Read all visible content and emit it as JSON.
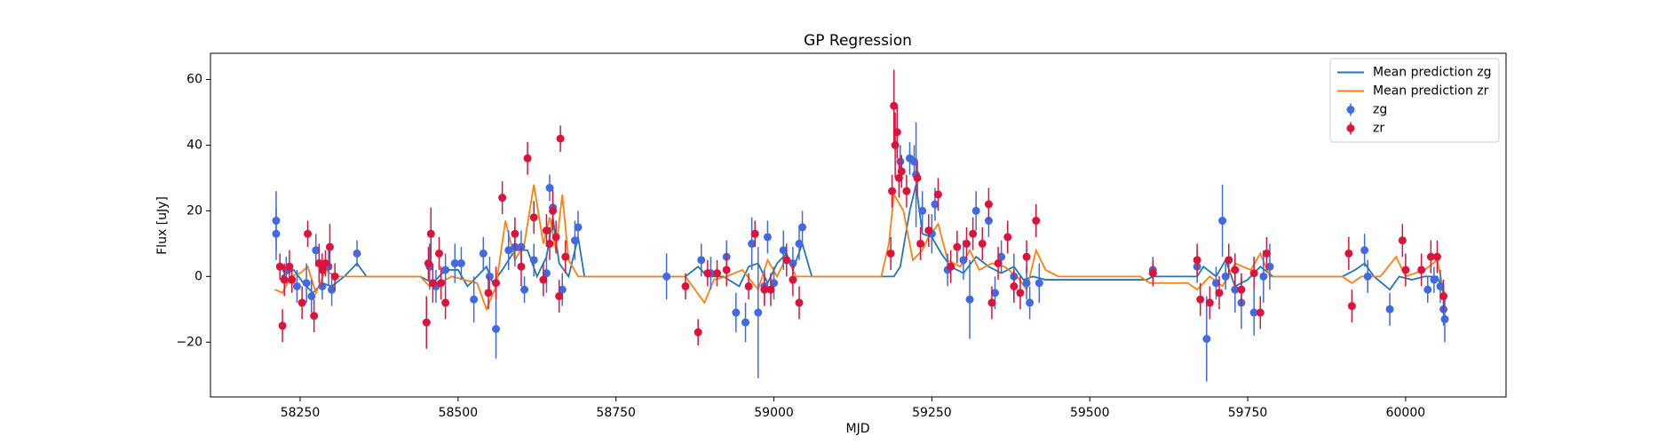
{
  "chart_data": {
    "type": "line",
    "title": "GP Regression",
    "x_label": "MJD",
    "y_label": "Flux [uJy]",
    "xlim": [
      58108,
      60159
    ],
    "ylim": [
      -36.7,
      68
    ],
    "xticks": [
      58250,
      58500,
      58750,
      59000,
      59250,
      59500,
      59750,
      60000
    ],
    "yticks": [
      {
        "value": -20,
        "label": "−20"
      },
      0,
      20,
      40,
      60
    ],
    "grid": false,
    "legend": "upper right",
    "series": [
      {
        "name": "Mean prediction zg",
        "type": "line",
        "color": "#1f77b4",
        "x": [
          58220,
          58240,
          58255,
          58270,
          58285,
          58300,
          58320,
          58340,
          58355,
          58440,
          58460,
          58480,
          58500,
          58515,
          58530,
          58545,
          58555,
          58570,
          58590,
          58610,
          58625,
          58640,
          58650,
          58660,
          58675,
          58690,
          58700,
          58720,
          58860,
          58880,
          58895,
          58920,
          58945,
          58960,
          58975,
          58990,
          59005,
          59020,
          59030,
          59045,
          59060,
          59190,
          59200,
          59215,
          59225,
          59235,
          59250,
          59265,
          59280,
          59300,
          59320,
          59340,
          59360,
          59380,
          59395,
          59410,
          59430,
          59590,
          59600,
          59620,
          59670,
          59680,
          59700,
          59715,
          59730,
          59750,
          59770,
          59790,
          59900,
          59920,
          59935,
          59950,
          59975,
          59990,
          60010,
          60030,
          60050,
          60060
        ],
        "values": [
          0,
          2,
          -2,
          -5,
          -2,
          -3,
          0,
          4,
          0,
          0,
          -2,
          2,
          2,
          -3,
          0,
          3,
          -2,
          2,
          8,
          8,
          0,
          6,
          18,
          4,
          0,
          12,
          0,
          0,
          0,
          3,
          0,
          0,
          -3,
          3,
          4,
          -2,
          4,
          7,
          2,
          10,
          0,
          0,
          3,
          20,
          28,
          13,
          12,
          7,
          3,
          1,
          6,
          3,
          1,
          3,
          -1,
          0,
          -1,
          -1,
          0,
          0,
          0,
          3,
          0,
          5,
          -3,
          -1,
          3,
          0,
          0,
          2,
          4,
          0,
          -4,
          0,
          -1,
          0,
          0,
          -5
        ]
      },
      {
        "name": "Mean prediction zr",
        "type": "line",
        "color": "#ff7f0e",
        "x": [
          58210,
          58222,
          58235,
          58250,
          58262,
          58275,
          58290,
          58305,
          58320,
          58440,
          58455,
          58470,
          58490,
          58510,
          58530,
          58545,
          58560,
          58575,
          58590,
          58605,
          58620,
          58635,
          58645,
          58655,
          58665,
          58675,
          58690,
          58860,
          58875,
          58890,
          58905,
          58925,
          58950,
          58975,
          58990,
          59005,
          59020,
          59035,
          59050,
          59170,
          59182,
          59190,
          59205,
          59220,
          59235,
          59245,
          59260,
          59275,
          59295,
          59310,
          59325,
          59345,
          59365,
          59385,
          59400,
          59415,
          59430,
          59450,
          59580,
          59595,
          59620,
          59655,
          59670,
          59690,
          59710,
          59730,
          59755,
          59770,
          59785,
          59800,
          59900,
          59915,
          59930,
          59960,
          59985,
          60000,
          60030,
          60050,
          60062
        ],
        "values": [
          -4,
          -5,
          0,
          1,
          3,
          -5,
          2,
          0,
          0,
          0,
          -3,
          -2,
          0,
          -1,
          -2,
          -10,
          -3,
          17,
          5,
          10,
          28,
          10,
          18,
          8,
          25,
          5,
          0,
          0,
          -4,
          -8,
          -1,
          0,
          2,
          -4,
          5,
          0,
          6,
          0,
          0,
          0,
          10,
          25,
          20,
          5,
          8,
          12,
          16,
          5,
          3,
          8,
          2,
          4,
          3,
          0,
          -4,
          8,
          2,
          0,
          0,
          -2,
          -2,
          -2,
          -4,
          0,
          -3,
          4,
          2,
          7,
          0,
          0,
          0,
          -2,
          0,
          0,
          6,
          0,
          2,
          5,
          -6
        ]
      },
      {
        "name": "zg",
        "type": "errorbar",
        "color": "#4169e1",
        "x": [
          58212,
          58212,
          58228,
          58245,
          58260,
          58268,
          58275,
          58285,
          58295,
          58300,
          58340,
          58455,
          58465,
          58480,
          58495,
          58505,
          58525,
          58540,
          58550,
          58560,
          58580,
          58590,
          58600,
          58605,
          58620,
          58640,
          58645,
          58650,
          58665,
          58685,
          58690,
          58830,
          58885,
          58900,
          58925,
          58940,
          58955,
          58965,
          58975,
          58985,
          58990,
          59000,
          59015,
          59030,
          59040,
          59045,
          59200,
          59215,
          59222,
          59225,
          59235,
          59250,
          59255,
          59275,
          59300,
          59310,
          59320,
          59340,
          59350,
          59360,
          59380,
          59400,
          59405,
          59420,
          59600,
          59670,
          59685,
          59700,
          59710,
          59715,
          59730,
          59740,
          59760,
          59775,
          59785,
          59935,
          59940,
          59975,
          60035,
          60045,
          60055,
          60062,
          60060
        ],
        "values": [
          17,
          13,
          2,
          -3,
          -2,
          -6,
          8,
          -3,
          3,
          -4,
          7,
          3,
          -3,
          2,
          4,
          4,
          -7,
          7,
          0,
          -16,
          8,
          9,
          9,
          -4,
          5,
          1,
          27,
          21,
          -4,
          11,
          15,
          0,
          5,
          1,
          6,
          -11,
          -14,
          10,
          -11,
          -3,
          12,
          -2,
          8,
          4,
          10,
          15,
          35,
          36,
          35,
          31,
          20,
          13,
          22,
          2,
          5,
          -7,
          20,
          17,
          -5,
          6,
          0,
          -2,
          -8,
          -2,
          2,
          3,
          -19,
          -2,
          17,
          0,
          -4,
          -8,
          -11,
          0,
          3,
          8,
          0,
          -10,
          -4,
          -1,
          -3,
          -13,
          -10
        ],
        "errors": [
          9,
          8,
          4,
          5,
          6,
          5,
          5,
          4,
          6,
          5,
          4,
          7,
          5,
          5,
          6,
          5,
          7,
          5,
          6,
          9,
          6,
          6,
          5,
          4,
          5,
          6,
          4,
          6,
          5,
          6,
          5,
          7,
          5,
          5,
          5,
          6,
          6,
          8,
          20,
          5,
          5,
          5,
          6,
          5,
          5,
          5,
          5,
          5,
          5,
          16,
          6,
          6,
          5,
          5,
          6,
          12,
          6,
          5,
          5,
          5,
          7,
          5,
          5,
          6,
          4,
          5,
          13,
          5,
          11,
          4,
          7,
          8,
          7,
          8,
          7,
          5,
          5,
          5,
          4,
          4,
          5,
          7,
          5
        ]
      },
      {
        "name": "zr",
        "type": "errorbar",
        "color": "#dc143c",
        "x": [
          58218,
          58222,
          58225,
          58233,
          58237,
          58253,
          58262,
          58272,
          58280,
          58285,
          58290,
          58297,
          58305,
          58450,
          58453,
          58457,
          58460,
          58470,
          58473,
          58480,
          58548,
          58560,
          58570,
          58590,
          58600,
          58610,
          58620,
          58635,
          58640,
          58645,
          58650,
          58655,
          58660,
          58662,
          58670,
          58860,
          58880,
          58895,
          58910,
          58925,
          58960,
          58970,
          58985,
          58995,
          59020,
          59030,
          59040,
          59185,
          59187,
          59190,
          59192,
          59195,
          59198,
          59202,
          59210,
          59227,
          59232,
          59245,
          59260,
          59280,
          59290,
          59305,
          59315,
          59330,
          59340,
          59345,
          59355,
          59370,
          59380,
          59390,
          59400,
          59415,
          59600,
          59670,
          59675,
          59690,
          59705,
          59720,
          59730,
          59740,
          59760,
          59770,
          59780,
          59910,
          59915,
          59995,
          60000,
          60025,
          60040,
          60050,
          60060
        ],
        "values": [
          3,
          -15,
          -1,
          3,
          -1,
          -8,
          13,
          -12,
          4,
          2,
          4,
          9,
          0,
          -14,
          4,
          13,
          -2,
          7,
          -2,
          -8,
          -5,
          -2,
          24,
          13,
          3,
          36,
          18,
          -1,
          14,
          10,
          20,
          12,
          -6,
          42,
          6,
          -3,
          -17,
          1,
          1,
          2,
          -3,
          13,
          -4,
          -4,
          5,
          -1,
          -8,
          7,
          26,
          52,
          40,
          44,
          30,
          32,
          26,
          30,
          10,
          14,
          25,
          3,
          9,
          10,
          13,
          10,
          22,
          -8,
          4,
          12,
          -3,
          -5,
          6,
          17,
          1,
          5,
          -7,
          -8,
          -5,
          5,
          2,
          -4,
          1,
          -11,
          7,
          7,
          -9,
          11,
          2,
          2,
          6,
          6,
          -6
        ],
        "errors": [
          4,
          5,
          5,
          5,
          4,
          5,
          4,
          5,
          6,
          5,
          4,
          7,
          4,
          8,
          5,
          8,
          6,
          5,
          5,
          5,
          5,
          5,
          5,
          5,
          6,
          5,
          5,
          5,
          5,
          5,
          6,
          5,
          5,
          4,
          5,
          4,
          4,
          4,
          4,
          5,
          4,
          4,
          5,
          5,
          5,
          5,
          5,
          5,
          5,
          11,
          10,
          8,
          6,
          5,
          5,
          5,
          5,
          5,
          5,
          5,
          5,
          5,
          5,
          5,
          5,
          5,
          5,
          5,
          5,
          5,
          5,
          5,
          4,
          5,
          5,
          5,
          5,
          5,
          5,
          5,
          5,
          5,
          5,
          5,
          5,
          5,
          5,
          5,
          5,
          5,
          5
        ]
      }
    ]
  }
}
